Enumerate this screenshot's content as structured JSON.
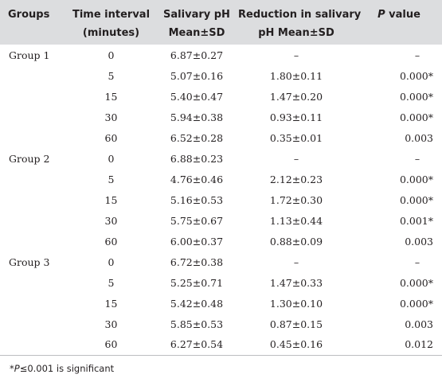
{
  "headers": {
    "groups": "Groups",
    "time_line1": "Time interval",
    "time_line2": "(minutes)",
    "ph_line1": "Salivary pH",
    "ph_line2": "Mean±SD",
    "red_line1": "Reduction in salivary",
    "red_line2": "pH Mean±SD",
    "p_label": "P",
    "p_rest": " value"
  },
  "rows": [
    {
      "group": "Group 1",
      "time": "0",
      "ph": "6.87±0.27",
      "red": "–",
      "p": "–"
    },
    {
      "group": "",
      "time": "5",
      "ph": "5.07±0.16",
      "red": "1.80±0.11",
      "p": "0.000*"
    },
    {
      "group": "",
      "time": "15",
      "ph": "5.40±0.47",
      "red": "1.47±0.20",
      "p": "0.000*"
    },
    {
      "group": "",
      "time": "30",
      "ph": "5.94±0.38",
      "red": "0.93±0.11",
      "p": "0.000*"
    },
    {
      "group": "",
      "time": "60",
      "ph": "6.52±0.28",
      "red": "0.35±0.01",
      "p": "0.003"
    },
    {
      "group": "Group 2",
      "time": "0",
      "ph": "6.88±0.23",
      "red": "–",
      "p": "–"
    },
    {
      "group": "",
      "time": "5",
      "ph": "4.76±0.46",
      "red": "2.12±0.23",
      "p": "0.000*"
    },
    {
      "group": "",
      "time": "15",
      "ph": "5.16±0.53",
      "red": "1.72±0.30",
      "p": "0.000*"
    },
    {
      "group": "",
      "time": "30",
      "ph": "5.75±0.67",
      "red": "1.13±0.44",
      "p": "0.001*"
    },
    {
      "group": "",
      "time": "60",
      "ph": "6.00±0.37",
      "red": "0.88±0.09",
      "p": "0.003"
    },
    {
      "group": "Group 3",
      "time": "0",
      "ph": "6.72±0.38",
      "red": "–",
      "p": "–"
    },
    {
      "group": "",
      "time": "5",
      "ph": "5.25±0.71",
      "red": "1.47±0.33",
      "p": "0.000*"
    },
    {
      "group": "",
      "time": "15",
      "ph": "5.42±0.48",
      "red": "1.30±0.10",
      "p": "0.000*"
    },
    {
      "group": "",
      "time": "30",
      "ph": "5.85±0.53",
      "red": "0.87±0.15",
      "p": "0.003"
    },
    {
      "group": "",
      "time": "60",
      "ph": "6.27±0.54",
      "red": "0.45±0.16",
      "p": "0.012"
    }
  ],
  "footnote": {
    "mark": "*",
    "p_label": "P",
    "text": "≤0.001 is significant"
  },
  "colors": {
    "header_bg": "#dcdddf",
    "text": "#231f20"
  }
}
